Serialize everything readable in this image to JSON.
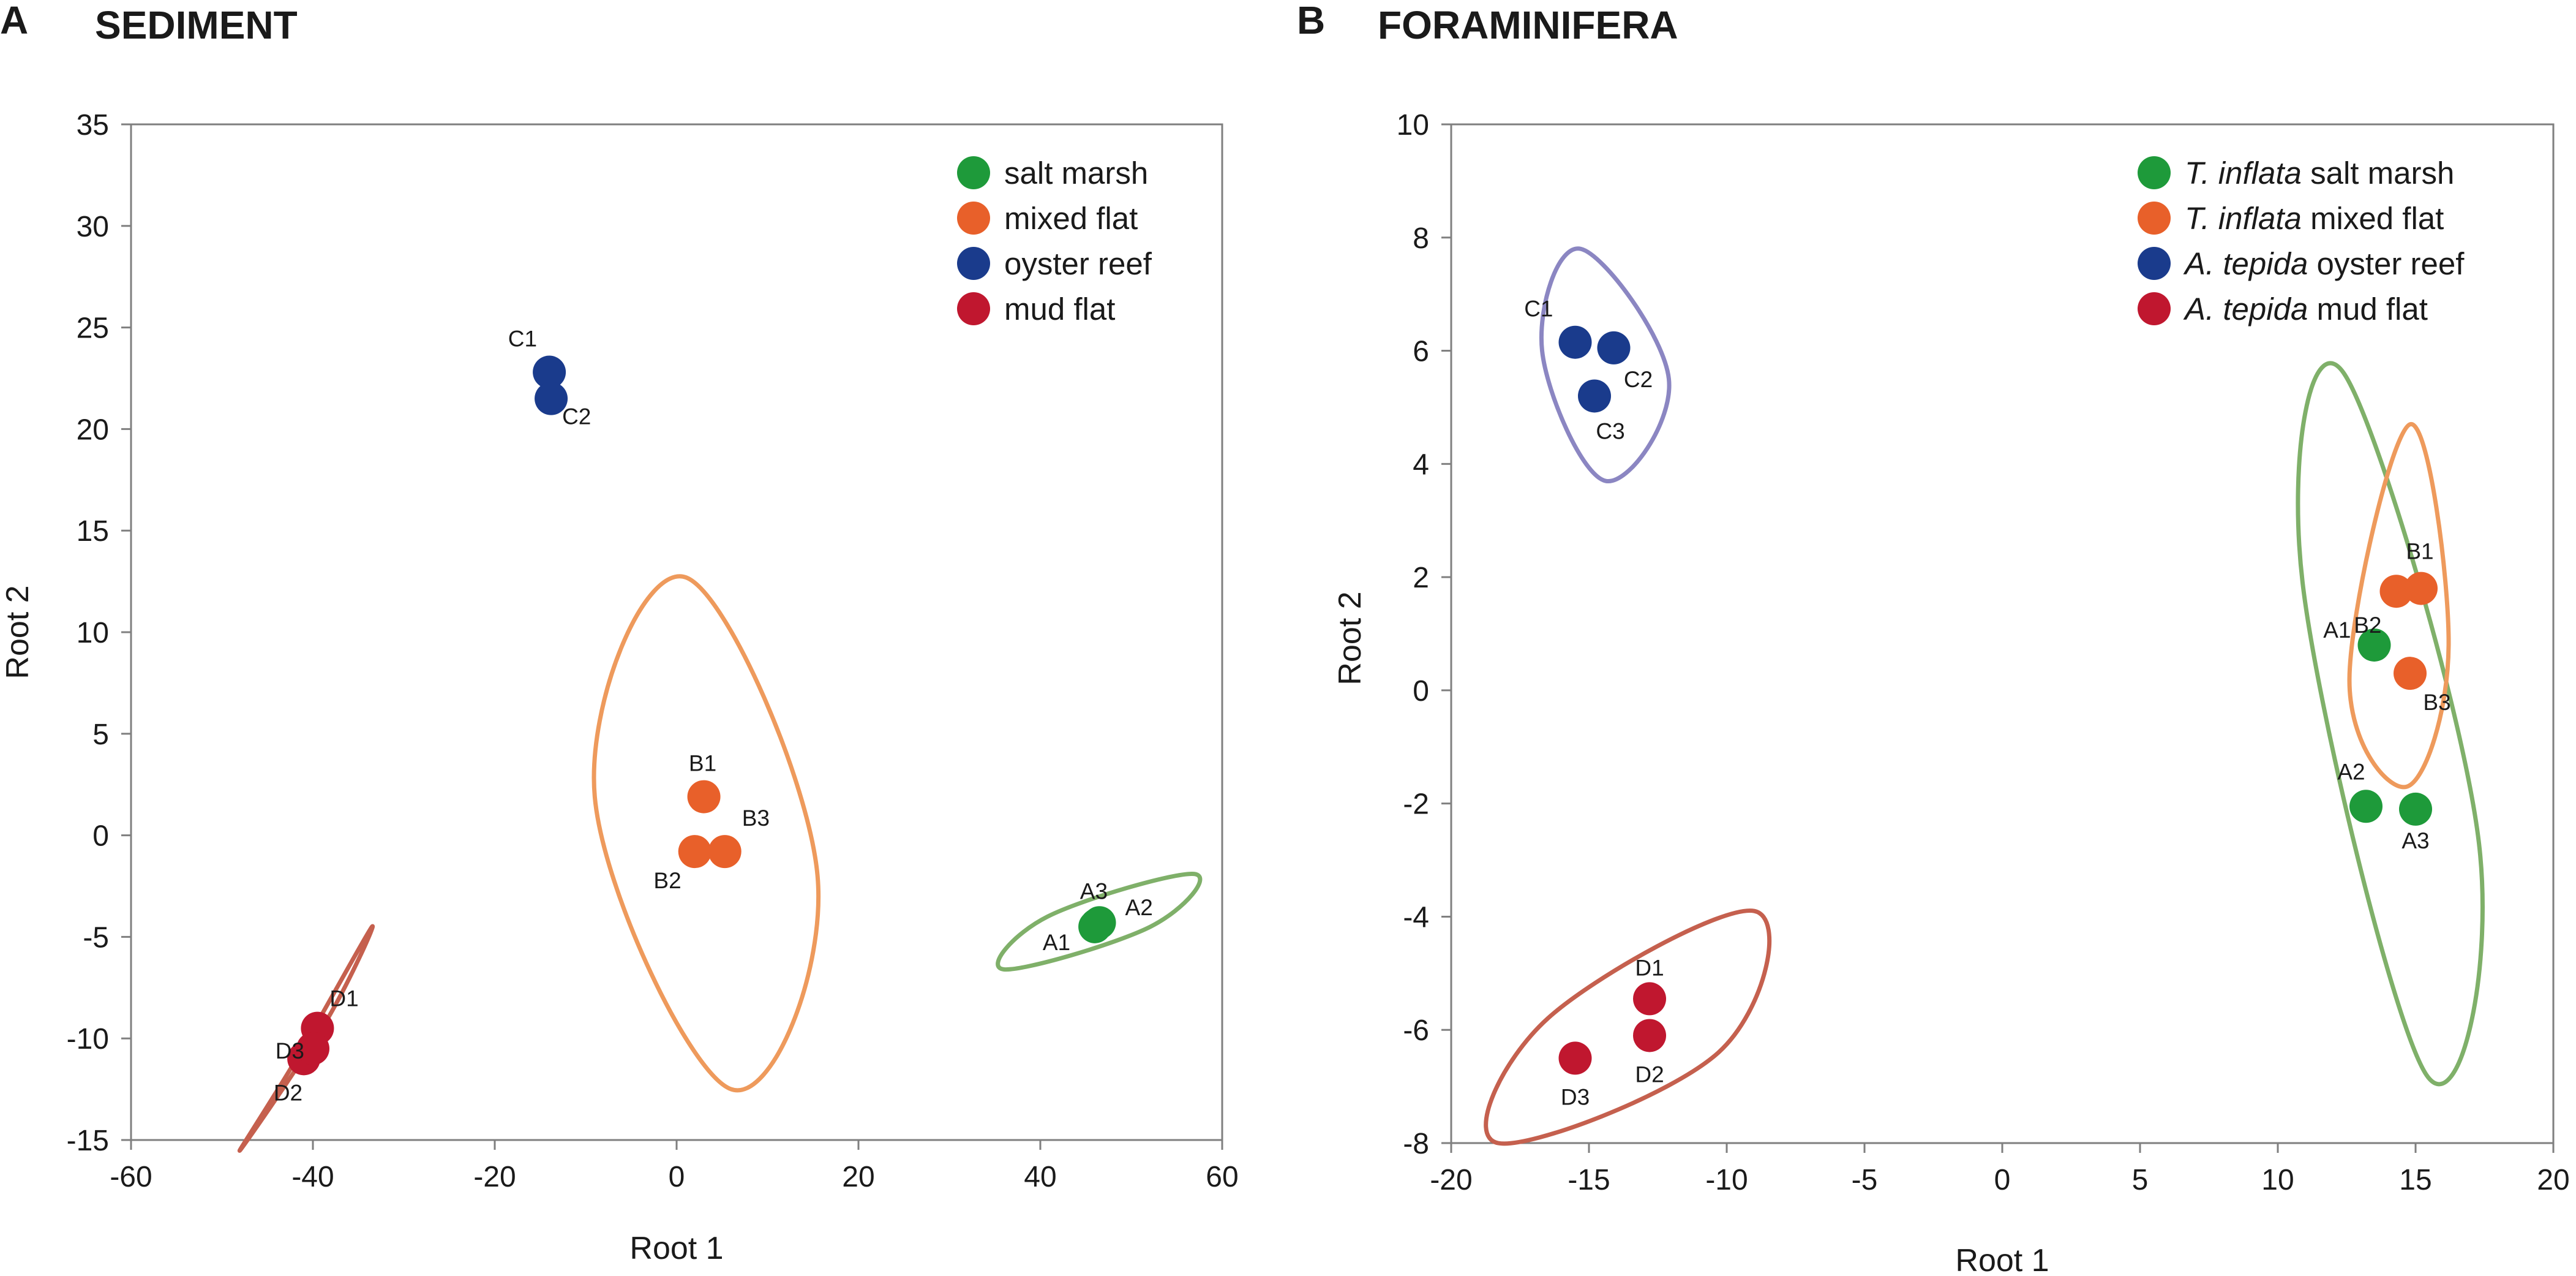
{
  "figure": {
    "panels": [
      {
        "id": "A",
        "letter": "A",
        "title": "SEDIMENT"
      },
      {
        "id": "B",
        "letter": "B",
        "title": "FORAMINIFERA"
      }
    ]
  },
  "colors": {
    "salt_marsh": "#1e9a3a",
    "mixed_flat": "#e8602a",
    "oyster_reef": "#1a3b8c",
    "mud_flat": "#c0172f",
    "ellipse_green": "#7fb069",
    "ellipse_orange": "#ee9a5c",
    "ellipse_purple": "#8b86c2",
    "ellipse_red": "#c5604e",
    "axis": "#7f7f7f"
  },
  "chart_data": [
    {
      "panel": "A",
      "type": "scatter",
      "title": "SEDIMENT",
      "xlabel": "Root 1",
      "ylabel": "Root 2",
      "xlim": [
        -60,
        60
      ],
      "ylim": [
        -15,
        35
      ],
      "xticks": [
        -60,
        -40,
        -20,
        0,
        20,
        40,
        60
      ],
      "yticks": [
        -15,
        -10,
        -5,
        0,
        5,
        10,
        15,
        20,
        25,
        30,
        35
      ],
      "legend_position": "top-right",
      "series": [
        {
          "name": "salt marsh",
          "color_key": "salt_marsh",
          "legend": [
            {
              "text": "salt marsh",
              "italic": false
            }
          ],
          "points": [
            {
              "label": "A1",
              "x": 46.0,
              "y": -4.5
            },
            {
              "label": "A2",
              "x": 46.5,
              "y": -4.3
            },
            {
              "label": "A3",
              "x": 46.2,
              "y": -4.4
            }
          ]
        },
        {
          "name": "mixed flat",
          "color_key": "mixed_flat",
          "legend": [
            {
              "text": "mixed flat",
              "italic": false
            }
          ],
          "points": [
            {
              "label": "B1",
              "x": 3.0,
              "y": 1.9
            },
            {
              "label": "B2",
              "x": 2.0,
              "y": -0.8
            },
            {
              "label": "B3",
              "x": 5.3,
              "y": -0.8
            }
          ]
        },
        {
          "name": "oyster reef",
          "color_key": "oyster_reef",
          "legend": [
            {
              "text": "oyster reef",
              "italic": false
            }
          ],
          "points": [
            {
              "label": "C1",
              "x": -14.0,
              "y": 22.8
            },
            {
              "label": "C2",
              "x": -13.8,
              "y": 21.5
            }
          ]
        },
        {
          "name": "mud flat",
          "color_key": "mud_flat",
          "legend": [
            {
              "text": "mud flat",
              "italic": false
            }
          ],
          "points": [
            {
              "label": "D1",
              "x": -39.5,
              "y": -9.5
            },
            {
              "label": "D2",
              "x": -41.0,
              "y": -11.0
            },
            {
              "label": "D3",
              "x": -40.0,
              "y": -10.5
            }
          ]
        }
      ],
      "ellipses": [
        {
          "color_key": "ellipse_green",
          "polygon": [
            [
              56.9,
              -1.9
            ],
            [
              40.8,
              -4.0
            ],
            [
              36.0,
              -6.6
            ],
            [
              52.1,
              -4.5
            ]
          ]
        },
        {
          "color_key": "ellipse_orange",
          "polygon": [
            [
              1.0,
              12.7
            ],
            [
              -9.0,
              1.9
            ],
            [
              6.0,
              -12.5
            ],
            [
              15.5,
              -2.0
            ]
          ]
        },
        {
          "color_key": "ellipse_red",
          "polygon": [
            [
              -33.5,
              -4.5
            ],
            [
              -38.6,
              -9.2
            ],
            [
              -48.0,
              -15.5
            ],
            [
              -41.8,
              -11.0
            ]
          ]
        }
      ]
    },
    {
      "panel": "B",
      "type": "scatter",
      "title": "FORAMINIFERA",
      "xlabel": "Root 1",
      "ylabel": "Root 2",
      "xlim": [
        -20,
        20
      ],
      "ylim": [
        -8,
        10
      ],
      "xticks": [
        -20,
        -15,
        -10,
        -5,
        0,
        5,
        10,
        15,
        20
      ],
      "yticks": [
        -8,
        -6,
        -4,
        -2,
        0,
        2,
        4,
        6,
        8,
        10
      ],
      "legend_position": "top-right",
      "series": [
        {
          "name": "T. inflata salt marsh",
          "color_key": "salt_marsh",
          "legend": [
            {
              "text": "T. inflata",
              "italic": true
            },
            {
              "text": " salt marsh",
              "italic": false
            }
          ],
          "points": [
            {
              "label": "A1",
              "x": 13.5,
              "y": 0.8
            },
            {
              "label": "A2",
              "x": 13.2,
              "y": -2.05
            },
            {
              "label": "A3",
              "x": 15.0,
              "y": -2.1
            }
          ]
        },
        {
          "name": "T. inflata mixed flat",
          "color_key": "mixed_flat",
          "legend": [
            {
              "text": "T. inflata",
              "italic": true
            },
            {
              "text": " mixed flat",
              "italic": false
            }
          ],
          "points": [
            {
              "label": "B1",
              "x": 15.2,
              "y": 1.8
            },
            {
              "label": "B2",
              "x": 14.3,
              "y": 1.75
            },
            {
              "label": "B3",
              "x": 14.8,
              "y": 0.3
            }
          ]
        },
        {
          "name": "A. tepida oyster reef",
          "color_key": "oyster_reef",
          "legend": [
            {
              "text": "A. tepida",
              "italic": true
            },
            {
              "text": " oyster reef",
              "italic": false
            }
          ],
          "points": [
            {
              "label": "C1",
              "x": -15.5,
              "y": 6.15
            },
            {
              "label": "C2",
              "x": -14.1,
              "y": 6.05
            },
            {
              "label": "C3",
              "x": -14.8,
              "y": 5.2
            }
          ]
        },
        {
          "name": "A. tepida mud flat",
          "color_key": "mud_flat",
          "legend": [
            {
              "text": "A. tepida",
              "italic": true
            },
            {
              "text": " mud flat",
              "italic": false
            }
          ],
          "points": [
            {
              "label": "D1",
              "x": -12.8,
              "y": -5.45
            },
            {
              "label": "D2",
              "x": -12.8,
              "y": -6.1
            },
            {
              "label": "D3",
              "x": -15.5,
              "y": -6.5
            }
          ]
        }
      ],
      "ellipses": [
        {
          "color_key": "ellipse_purple",
          "polygon": [
            [
              -15.3,
              7.8
            ],
            [
              -16.7,
              6.0
            ],
            [
              -14.4,
              3.7
            ],
            [
              -12.1,
              5.5
            ]
          ]
        },
        {
          "color_key": "ellipse_green",
          "polygon": [
            [
              12.4,
              5.6
            ],
            [
              10.9,
              1.9
            ],
            [
              15.4,
              -6.8
            ],
            [
              17.3,
              -2.7
            ]
          ]
        },
        {
          "color_key": "ellipse_orange",
          "polygon": [
            [
              14.8,
              4.7
            ],
            [
              12.6,
              0.2
            ],
            [
              14.7,
              -1.7
            ],
            [
              16.2,
              0.8
            ]
          ]
        },
        {
          "color_key": "ellipse_red",
          "polygon": [
            [
              -9.0,
              -3.9
            ],
            [
              -16.5,
              -5.8
            ],
            [
              -18.3,
              -8.0
            ],
            [
              -10.3,
              -6.4
            ]
          ]
        }
      ]
    }
  ]
}
